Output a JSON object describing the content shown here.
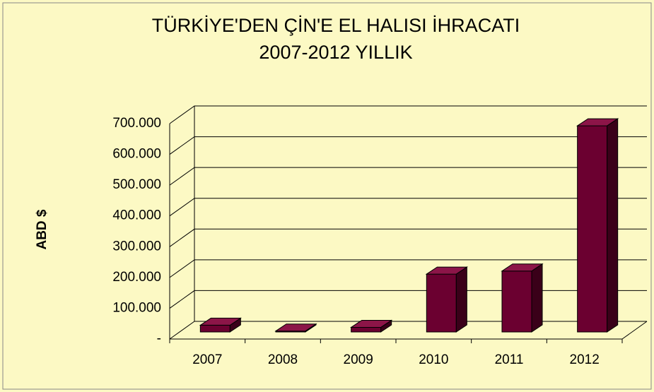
{
  "chart_data": {
    "type": "bar3d",
    "title": "TÜRKİYE'DEN ÇİN'E EL HALISI İHRACATI",
    "subtitle": "2007-2012 YILLIK",
    "y_label": "ABD $",
    "categories": [
      "2007",
      "2008",
      "2009",
      "2010",
      "2011",
      "2012"
    ],
    "values": [
      22000,
      3000,
      15000,
      188000,
      198000,
      670000
    ],
    "color": "#6b0030",
    "ylim": [
      0,
      700000
    ],
    "yticks": [
      {
        "value": 0,
        "label": "-"
      },
      {
        "value": 100000,
        "label": "100.000"
      },
      {
        "value": 200000,
        "label": "200.000"
      },
      {
        "value": 300000,
        "label": "300.000"
      },
      {
        "value": 400000,
        "label": "400.000"
      },
      {
        "value": 500000,
        "label": "500.000"
      },
      {
        "value": 600000,
        "label": "600.000"
      },
      {
        "value": 700000,
        "label": "700.000"
      }
    ],
    "grid": true
  }
}
